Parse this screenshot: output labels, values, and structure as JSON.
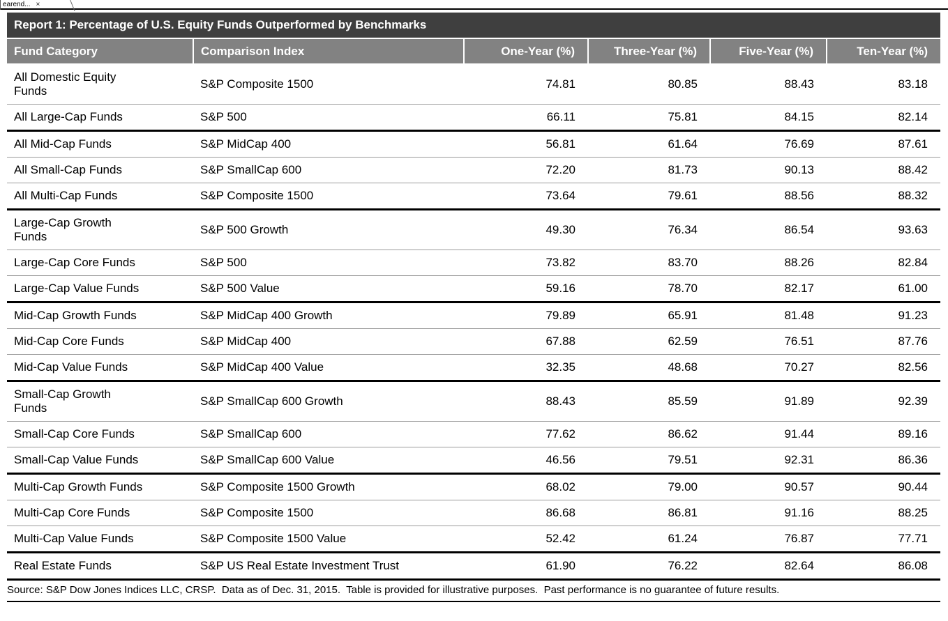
{
  "tab": {
    "label": "earend...",
    "close_glyph": "×"
  },
  "report": {
    "title": "Report 1: Percentage of U.S. Equity Funds Outperformed by Benchmarks",
    "source_note": "Source: S&P Dow Jones Indices LLC, CRSP.  Data as of Dec. 31, 2015.  Table is provided for illustrative purposes.  Past performance is no guarantee of future results."
  },
  "table": {
    "columns": [
      "Fund Category",
      "Comparison Index",
      "One-Year (%)",
      "Three-Year (%)",
      "Five-Year (%)",
      "Ten-Year (%)"
    ],
    "rows": [
      [
        "All Domestic Equity\nFunds",
        "S&P Composite 1500",
        "74.81",
        "80.85",
        "88.43",
        "83.18"
      ],
      [
        "All Large-Cap Funds",
        "S&P 500",
        "66.11",
        "75.81",
        "84.15",
        "82.14"
      ],
      [
        "All Mid-Cap Funds",
        "S&P MidCap 400",
        "56.81",
        "61.64",
        "76.69",
        "87.61"
      ],
      [
        "All Small-Cap Funds",
        "S&P SmallCap 600",
        "72.20",
        "81.73",
        "90.13",
        "88.42"
      ],
      [
        "All Multi-Cap Funds",
        "S&P Composite 1500",
        "73.64",
        "79.61",
        "88.56",
        "88.32"
      ],
      [
        "Large-Cap Growth\nFunds",
        "S&P 500 Growth",
        "49.30",
        "76.34",
        "86.54",
        "93.63"
      ],
      [
        "Large-Cap Core Funds",
        "S&P 500",
        "73.82",
        "83.70",
        "88.26",
        "82.84"
      ],
      [
        "Large-Cap Value Funds",
        "S&P 500 Value",
        "59.16",
        "78.70",
        "82.17",
        "61.00"
      ],
      [
        "Mid-Cap Growth Funds",
        "S&P MidCap 400 Growth",
        "79.89",
        "65.91",
        "81.48",
        "91.23"
      ],
      [
        "Mid-Cap Core Funds",
        "S&P MidCap 400",
        "67.88",
        "62.59",
        "76.51",
        "87.76"
      ],
      [
        "Mid-Cap Value Funds",
        "S&P MidCap 400 Value",
        "32.35",
        "48.68",
        "70.27",
        "82.56"
      ],
      [
        "Small-Cap Growth\nFunds",
        "S&P SmallCap 600 Growth",
        "88.43",
        "85.59",
        "91.89",
        "92.39"
      ],
      [
        "Small-Cap Core Funds",
        "S&P SmallCap 600",
        "77.62",
        "86.62",
        "91.44",
        "89.16"
      ],
      [
        "Small-Cap Value Funds",
        "S&P SmallCap 600 Value",
        "46.56",
        "79.51",
        "92.31",
        "86.36"
      ],
      [
        "Multi-Cap Growth Funds",
        "S&P Composite 1500 Growth",
        "68.02",
        "79.00",
        "90.57",
        "90.44"
      ],
      [
        "Multi-Cap Core Funds",
        "S&P Composite 1500",
        "86.68",
        "86.81",
        "91.16",
        "88.25"
      ],
      [
        "Multi-Cap Value Funds",
        "S&P Composite 1500 Value",
        "52.42",
        "61.24",
        "76.87",
        "77.71"
      ],
      [
        "Real Estate Funds",
        "S&P US Real Estate Investment Trust",
        "61.90",
        "76.22",
        "82.64",
        "86.08"
      ]
    ],
    "group_breaks_after": [
      1,
      4,
      7,
      10,
      13,
      16
    ]
  },
  "colors": {
    "title_bar_bg": "#3f3f3f",
    "column_header_bg": "#828282",
    "header_text": "#ffffff",
    "body_text": "#000000",
    "thin_rule": "#9a9a9a",
    "thick_rule": "#000000"
  }
}
